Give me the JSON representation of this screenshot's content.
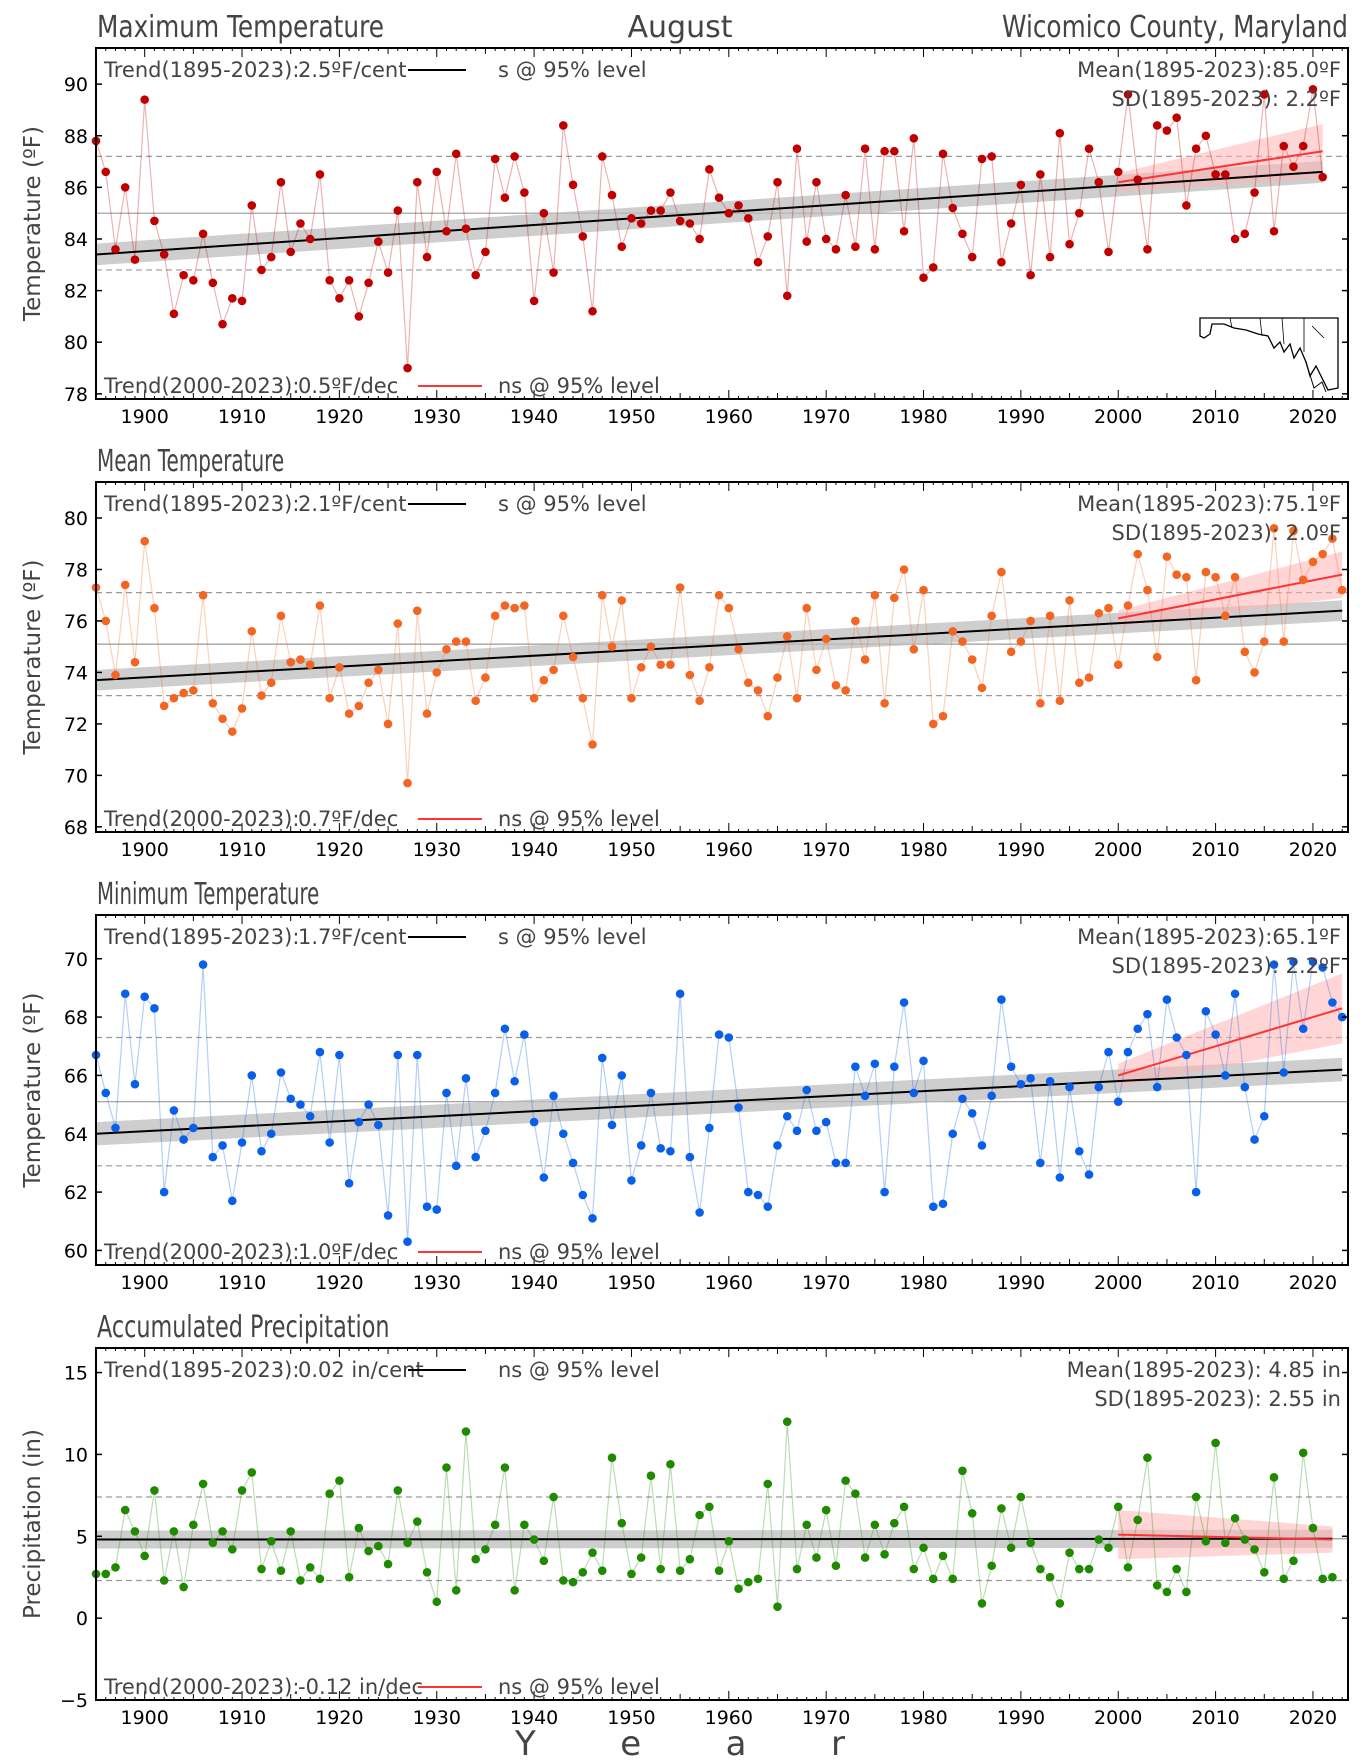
{
  "header": {
    "left": "Maximum Temperature",
    "center": "August",
    "right": "Wicomico County, Maryland"
  },
  "xlabel": "Y e a r",
  "x_ticks": [
    1900,
    1910,
    1920,
    1930,
    1940,
    1950,
    1960,
    1970,
    1980,
    1990,
    2000,
    2010,
    2020
  ],
  "colors": {
    "max": "#c00000",
    "mean": "#f26522",
    "min": "#0a5fe8",
    "precip": "#1f8a00",
    "trend_long": "#000000",
    "trend_recent": "#ff3333",
    "band_long": "#bdbdbd",
    "band_recent": "#ffb3b3"
  },
  "chart_data": [
    {
      "type": "line",
      "key": "max",
      "title": "",
      "ylabel": "Temperature (ºF)",
      "ylim": [
        77.8,
        91.4
      ],
      "yticks": [
        78,
        80,
        82,
        84,
        86,
        88,
        90
      ],
      "x_start": 1895,
      "values": [
        87.8,
        86.6,
        83.6,
        86.0,
        83.2,
        89.4,
        84.7,
        83.4,
        81.1,
        82.6,
        82.4,
        84.2,
        82.3,
        80.7,
        81.7,
        81.6,
        85.3,
        82.8,
        83.3,
        86.2,
        83.5,
        84.6,
        84.0,
        86.5,
        82.4,
        81.7,
        82.4,
        81.0,
        82.3,
        83.9,
        82.7,
        85.1,
        79.0,
        86.2,
        83.3,
        86.6,
        84.3,
        87.3,
        84.4,
        82.6,
        83.5,
        87.1,
        85.6,
        87.2,
        85.8,
        81.6,
        85.0,
        82.7,
        88.4,
        86.1,
        84.1,
        81.2,
        87.2,
        85.7,
        83.7,
        84.8,
        84.6,
        85.1,
        85.1,
        85.8,
        84.7,
        84.6,
        84.0,
        86.7,
        85.6,
        85.0,
        85.3,
        84.8,
        83.1,
        84.1,
        86.2,
        81.8,
        87.5,
        83.9,
        86.2,
        84.0,
        83.6,
        85.7,
        83.7,
        87.5,
        83.6,
        87.4,
        87.4,
        84.3,
        87.9,
        82.5,
        82.9,
        87.3,
        85.2,
        84.2,
        83.3,
        87.1,
        87.2,
        83.1,
        84.6,
        86.1,
        82.6,
        86.5,
        83.3,
        88.1,
        83.8,
        85.0,
        87.5,
        86.2,
        83.5,
        86.6,
        89.6,
        86.3,
        83.6,
        88.4,
        88.2,
        88.7,
        85.3,
        87.5,
        88.0,
        86.5,
        86.5,
        84.0,
        84.2,
        85.8,
        89.6,
        84.3,
        87.6,
        86.8,
        87.6,
        89.8,
        86.4
      ],
      "mean": 85.0,
      "sd": 2.2,
      "trend_long": {
        "start": 83.4,
        "end": 86.6,
        "ci": 0.42
      },
      "trend_recent": {
        "start": 86.2,
        "end": 87.4,
        "ci_start": 0.35,
        "ci_end": 1.05
      },
      "legend_top": {
        "label": "Trend(1895-2023):",
        "value": "2.5ºF/cent",
        "sig": "s @ 95% level"
      },
      "legend_bottom": {
        "label": "Trend(2000-2023):",
        "value": "0.5ºF/dec",
        "sig": "ns @ 95% level"
      },
      "stat_mean": "Mean(1895-2023):85.0ºF",
      "stat_sd": "SD(1895-2023): 2.2ºF"
    },
    {
      "type": "line",
      "key": "mean",
      "title": "Mean Temperature",
      "ylabel": "Temperature (ºF)",
      "ylim": [
        67.8,
        81.4
      ],
      "yticks": [
        68,
        70,
        72,
        74,
        76,
        78,
        80
      ],
      "x_start": 1895,
      "values": [
        77.3,
        76.0,
        73.9,
        77.4,
        74.4,
        79.1,
        76.5,
        72.7,
        73.0,
        73.2,
        73.3,
        77.0,
        72.8,
        72.2,
        71.7,
        72.6,
        75.6,
        73.1,
        73.6,
        76.2,
        74.4,
        74.5,
        74.3,
        76.6,
        73.0,
        74.2,
        72.4,
        72.7,
        73.6,
        74.1,
        72.0,
        75.9,
        69.7,
        76.4,
        72.4,
        74.0,
        74.9,
        75.2,
        75.2,
        72.9,
        73.8,
        76.2,
        76.6,
        76.5,
        76.6,
        73.0,
        73.7,
        74.1,
        76.2,
        74.6,
        73.0,
        71.2,
        77.0,
        75.0,
        76.8,
        73.0,
        74.2,
        75.0,
        74.3,
        74.3,
        77.3,
        73.9,
        72.9,
        74.2,
        77.0,
        76.5,
        74.9,
        73.6,
        73.3,
        72.3,
        73.8,
        75.4,
        73.0,
        76.5,
        74.1,
        75.3,
        73.5,
        73.3,
        76.0,
        74.5,
        77.0,
        72.8,
        76.9,
        78.0,
        74.9,
        77.2,
        72.0,
        72.3,
        75.6,
        75.2,
        74.5,
        73.4,
        76.2,
        77.9,
        74.8,
        75.2,
        76.0,
        72.8,
        76.2,
        72.9,
        76.8,
        73.6,
        73.8,
        76.3,
        76.5,
        74.3,
        76.6,
        78.6,
        77.2,
        74.6,
        78.5,
        77.8,
        77.7,
        73.7,
        77.9,
        77.7,
        76.2,
        77.7,
        74.8,
        74.0,
        75.2,
        79.6,
        75.2,
        79.5,
        77.6,
        78.3,
        78.6,
        79.2,
        77.2
      ],
      "mean": 75.1,
      "sd": 2.0,
      "trend_long": {
        "start": 73.7,
        "end": 76.4,
        "ci": 0.4
      },
      "trend_recent": {
        "start": 76.1,
        "end": 77.8,
        "ci_start": 0.3,
        "ci_end": 0.9
      },
      "legend_top": {
        "label": "Trend(1895-2023):",
        "value": "2.1ºF/cent",
        "sig": "s @ 95% level"
      },
      "legend_bottom": {
        "label": "Trend(2000-2023):",
        "value": "0.7ºF/dec",
        "sig": "ns @ 95% level"
      },
      "stat_mean": "Mean(1895-2023):75.1ºF",
      "stat_sd": "SD(1895-2023): 2.0ºF"
    },
    {
      "type": "line",
      "key": "min",
      "title": "Minimum Temperature",
      "ylabel": "Temperature (ºF)",
      "ylim": [
        59.5,
        71.5
      ],
      "yticks": [
        60,
        62,
        64,
        66,
        68,
        70
      ],
      "x_start": 1895,
      "values": [
        66.7,
        65.4,
        64.2,
        68.8,
        65.7,
        68.7,
        68.3,
        62.0,
        64.8,
        63.8,
        64.2,
        69.8,
        63.2,
        63.6,
        61.7,
        63.7,
        66.0,
        63.4,
        64.0,
        66.1,
        65.2,
        65.0,
        64.6,
        66.8,
        63.7,
        66.7,
        62.3,
        64.4,
        65.0,
        64.3,
        61.2,
        66.7,
        60.3,
        66.7,
        61.5,
        61.4,
        65.4,
        62.9,
        65.9,
        63.2,
        64.1,
        65.4,
        67.6,
        65.8,
        67.4,
        64.4,
        62.5,
        65.3,
        64.0,
        63.0,
        61.9,
        61.1,
        66.6,
        64.3,
        66.0,
        62.4,
        63.6,
        65.4,
        63.5,
        63.4,
        68.8,
        63.2,
        61.3,
        64.2,
        67.4,
        67.3,
        64.9,
        62.0,
        61.9,
        61.5,
        63.6,
        64.6,
        64.1,
        65.5,
        64.1,
        64.4,
        63.0,
        63.0,
        66.3,
        65.3,
        66.4,
        62.0,
        66.3,
        68.5,
        65.4,
        66.5,
        61.5,
        61.6,
        64.0,
        65.2,
        64.7,
        63.6,
        65.3,
        68.6,
        66.3,
        65.7,
        65.9,
        63.0,
        65.8,
        62.5,
        65.6,
        63.4,
        62.6,
        65.6,
        66.8,
        65.1,
        66.8,
        67.6,
        68.1,
        65.6,
        68.6,
        67.3,
        66.7,
        62.0,
        68.2,
        67.4,
        66.0,
        68.8,
        65.6,
        63.8,
        64.6,
        69.8,
        66.1,
        69.9,
        67.6,
        69.9,
        69.7,
        68.5,
        68.0
      ],
      "mean": 65.1,
      "sd": 2.2,
      "trend_long": {
        "start": 64.0,
        "end": 66.2,
        "ci": 0.4
      },
      "trend_recent": {
        "start": 66.0,
        "end": 68.3,
        "ci_start": 0.4,
        "ci_end": 1.2
      },
      "legend_top": {
        "label": "Trend(1895-2023):",
        "value": "1.7ºF/cent",
        "sig": "s @ 95% level"
      },
      "legend_bottom": {
        "label": "Trend(2000-2023):",
        "value": "1.0ºF/dec",
        "sig": "ns @ 95% level"
      },
      "stat_mean": "Mean(1895-2023):65.1ºF",
      "stat_sd": "SD(1895-2023): 2.2ºF"
    },
    {
      "type": "line",
      "key": "precip",
      "title": "Accumulated Precipitation",
      "ylabel": "Precipitation (in)",
      "ylim": [
        -5,
        16.5
      ],
      "yticks": [
        -5,
        0,
        5,
        10,
        15
      ],
      "x_start": 1895,
      "values": [
        2.7,
        2.7,
        3.1,
        6.6,
        5.3,
        3.8,
        7.8,
        2.3,
        5.3,
        1.9,
        5.7,
        8.2,
        4.6,
        5.3,
        4.2,
        7.8,
        8.9,
        3.0,
        4.7,
        2.9,
        5.3,
        2.3,
        3.1,
        2.4,
        7.6,
        8.4,
        2.5,
        5.5,
        4.1,
        4.4,
        3.3,
        7.8,
        4.6,
        5.9,
        2.8,
        1.0,
        9.2,
        1.7,
        11.4,
        3.6,
        4.2,
        5.7,
        9.2,
        1.7,
        5.7,
        4.8,
        3.5,
        7.4,
        2.3,
        2.2,
        2.8,
        4.0,
        2.9,
        9.8,
        5.8,
        2.7,
        3.7,
        8.7,
        3.0,
        9.4,
        2.9,
        3.6,
        6.3,
        6.8,
        2.9,
        4.7,
        1.8,
        2.2,
        2.4,
        8.2,
        0.7,
        12.0,
        3.0,
        5.7,
        3.7,
        6.6,
        3.2,
        8.4,
        7.6,
        3.7,
        5.7,
        3.9,
        5.8,
        6.8,
        3.0,
        4.3,
        2.4,
        3.8,
        2.4,
        9.0,
        6.4,
        0.9,
        3.2,
        6.7,
        4.3,
        7.4,
        4.6,
        3.0,
        2.5,
        0.9,
        4.0,
        3.0,
        3.0,
        4.8,
        4.3,
        6.8,
        3.1,
        6.0,
        9.8,
        2.0,
        1.6,
        3.0,
        1.6,
        7.4,
        4.7,
        10.7,
        4.6,
        6.1,
        4.8,
        4.2,
        2.8,
        8.6,
        2.4,
        3.5,
        10.1,
        5.5,
        2.4,
        2.5
      ],
      "mean": 4.85,
      "sd": 2.55,
      "trend_long": {
        "start": 4.8,
        "end": 4.85,
        "ci": 0.55
      },
      "trend_recent": {
        "start": 5.1,
        "end": 4.8,
        "ci_start": 1.5,
        "ci_end": 0.8
      },
      "legend_top": {
        "label": "Trend(1895-2023):",
        "value": "0.02 in/cent",
        "sig": "ns @ 95% level"
      },
      "legend_bottom": {
        "label": "Trend(2000-2023):",
        "value": "-0.12 in/dec",
        "sig": "ns @ 95% level"
      },
      "stat_mean": "Mean(1895-2023): 4.85 in",
      "stat_sd": "SD(1895-2023): 2.55 in"
    }
  ]
}
